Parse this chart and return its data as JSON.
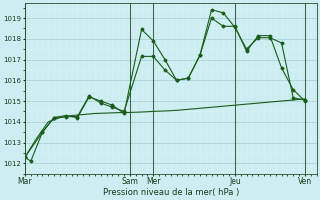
{
  "xlabel": "Pression niveau de la mer( hPa )",
  "bg_color": "#cceef2",
  "grid_major_color": "#aad4d8",
  "grid_minor_color": "#ddf0f3",
  "line_color": "#1a5c1a",
  "ylim": [
    1011.5,
    1019.7
  ],
  "xlim": [
    0,
    50
  ],
  "yticks": [
    1012,
    1013,
    1014,
    1015,
    1016,
    1017,
    1018,
    1019
  ],
  "day_labels": [
    "Mar",
    "Sam",
    "Mer",
    "Jeu",
    "Ven"
  ],
  "day_positions": [
    0,
    18,
    22,
    36,
    48
  ],
  "vline_color": "#3a5c3a",
  "series1_x": [
    0,
    1,
    3,
    5,
    7,
    9,
    11,
    13,
    15,
    17,
    20,
    22,
    24,
    26,
    28,
    30,
    32,
    34,
    36,
    38,
    40,
    42,
    44,
    46,
    48
  ],
  "series1_y": [
    1012.3,
    1012.1,
    1013.5,
    1014.2,
    1014.3,
    1014.2,
    1015.2,
    1015.0,
    1014.8,
    1014.4,
    1018.45,
    1017.9,
    1017.0,
    1016.0,
    1016.1,
    1017.2,
    1019.4,
    1019.25,
    1018.55,
    1017.5,
    1018.05,
    1018.05,
    1017.8,
    1015.15,
    1015.05
  ],
  "series2_x": [
    0,
    3,
    5,
    7,
    9,
    11,
    13,
    15,
    17,
    20,
    22,
    24,
    26,
    28,
    30,
    32,
    34,
    36,
    38,
    40,
    42,
    44,
    46,
    48
  ],
  "series2_y": [
    1012.3,
    1013.5,
    1014.2,
    1014.25,
    1014.25,
    1015.25,
    1014.9,
    1014.7,
    1014.5,
    1017.15,
    1017.15,
    1016.5,
    1016.0,
    1016.1,
    1017.2,
    1019.0,
    1018.6,
    1018.6,
    1017.4,
    1018.15,
    1018.15,
    1016.6,
    1015.55,
    1015.0
  ],
  "series3_x": [
    0,
    2,
    4,
    6,
    8,
    10,
    12,
    14,
    16,
    18,
    20,
    22,
    24,
    26,
    28,
    30,
    32,
    34,
    36,
    38,
    40,
    42,
    44,
    46,
    48
  ],
  "series3_y": [
    1012.3,
    1013.2,
    1014.0,
    1014.2,
    1014.3,
    1014.35,
    1014.4,
    1014.42,
    1014.44,
    1014.45,
    1014.47,
    1014.5,
    1014.52,
    1014.55,
    1014.6,
    1014.65,
    1014.7,
    1014.75,
    1014.8,
    1014.85,
    1014.9,
    1014.95,
    1015.0,
    1015.05,
    1015.1
  ]
}
